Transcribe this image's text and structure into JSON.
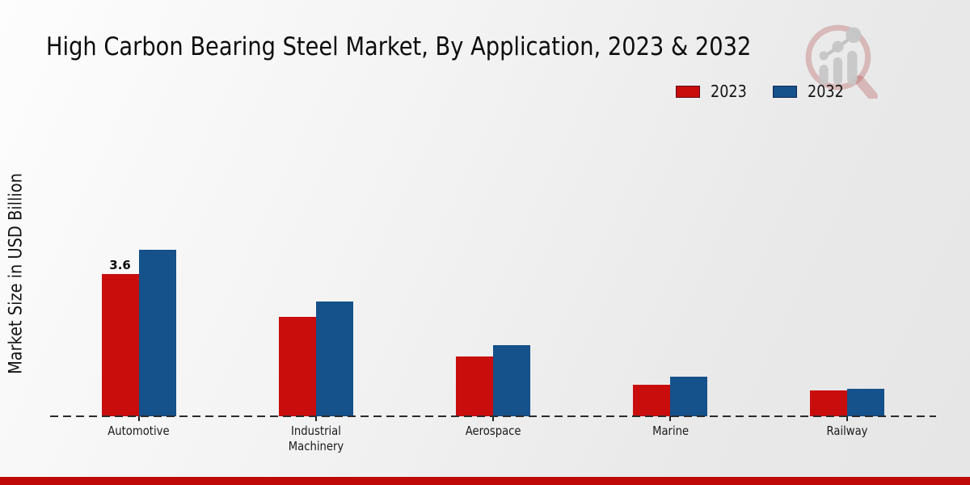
{
  "page": {
    "title": "High Carbon Bearing Steel Market, By Application, 2023 & 2032",
    "accent_bar_color": "#bf0808",
    "background_top": "#fdfdfd",
    "background_bottom": "#e6e6e6",
    "watermark_icon": "market-research-magnifier-logo"
  },
  "chart_data": {
    "type": "bar",
    "title": "High Carbon Bearing Steel Market, By Application, 2023 & 2032",
    "xlabel": "",
    "ylabel": "Market Size in USD Billion",
    "categories": [
      "Automotive",
      "Industrial Machinery",
      "Aerospace",
      "Marine",
      "Railway"
    ],
    "series": [
      {
        "name": "2023",
        "color": "#c90d0d",
        "values": [
          3.6,
          2.5,
          1.5,
          0.8,
          0.65
        ],
        "data_labels": [
          "3.6",
          "",
          "",
          "",
          ""
        ]
      },
      {
        "name": "2032",
        "color": "#15518a",
        "values": [
          4.2,
          2.9,
          1.8,
          1.0,
          0.7
        ],
        "data_labels": [
          "",
          "",
          "",
          "",
          ""
        ]
      }
    ],
    "ylim": [
      0,
      5.2
    ],
    "grid": false,
    "y_tick_labels_visible": false,
    "legend_position": "top-right",
    "axis_style": "dashed-baseline-with-ticks"
  }
}
